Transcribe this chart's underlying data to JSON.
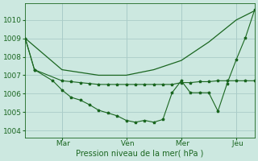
{
  "background_color": "#cce8e0",
  "grid_color": "#aaccc8",
  "line_color": "#1a6620",
  "xlabel": "Pression niveau de la mer( hPa )",
  "yticks": [
    1004,
    1005,
    1006,
    1007,
    1008,
    1009,
    1010
  ],
  "ylim": [
    1003.6,
    1010.9
  ],
  "xlim": [
    0,
    25
  ],
  "xtick_labels": [
    " Mar",
    " Ven",
    " Mer",
    " Jeu"
  ],
  "xtick_positions": [
    4,
    11,
    17,
    23
  ],
  "line_smooth": {
    "x": [
      0,
      4,
      8,
      11,
      14,
      17,
      20,
      23,
      25
    ],
    "y": [
      1009.0,
      1007.3,
      1007.0,
      1007.0,
      1007.3,
      1007.8,
      1008.8,
      1010.0,
      1010.5
    ],
    "markers": false
  },
  "line_flat": {
    "x": [
      0,
      1,
      4,
      5,
      6,
      7,
      8,
      9,
      10,
      11,
      12,
      13,
      14,
      15,
      16,
      17,
      18,
      19,
      20,
      21,
      22,
      23,
      24,
      25
    ],
    "y": [
      1009.0,
      1007.3,
      1006.7,
      1006.65,
      1006.6,
      1006.55,
      1006.5,
      1006.5,
      1006.5,
      1006.5,
      1006.5,
      1006.5,
      1006.5,
      1006.5,
      1006.5,
      1006.6,
      1006.6,
      1006.65,
      1006.65,
      1006.7,
      1006.7,
      1006.7,
      1006.7,
      1006.7
    ],
    "markers": true
  },
  "line_zigzag": {
    "x": [
      0,
      1,
      3,
      4,
      5,
      6,
      7,
      8,
      9,
      10,
      11,
      12,
      13,
      14,
      15,
      16,
      17,
      18,
      19,
      20,
      21,
      22,
      23,
      24,
      25
    ],
    "y": [
      1009.0,
      1007.3,
      1006.7,
      1006.2,
      1005.8,
      1005.65,
      1005.4,
      1005.1,
      1004.95,
      1004.8,
      1004.55,
      1004.45,
      1004.55,
      1004.45,
      1004.6,
      1006.05,
      1006.7,
      1006.05,
      1006.05,
      1006.05,
      1005.05,
      1006.55,
      1007.85,
      1009.05,
      1010.55
    ],
    "markers": true
  }
}
